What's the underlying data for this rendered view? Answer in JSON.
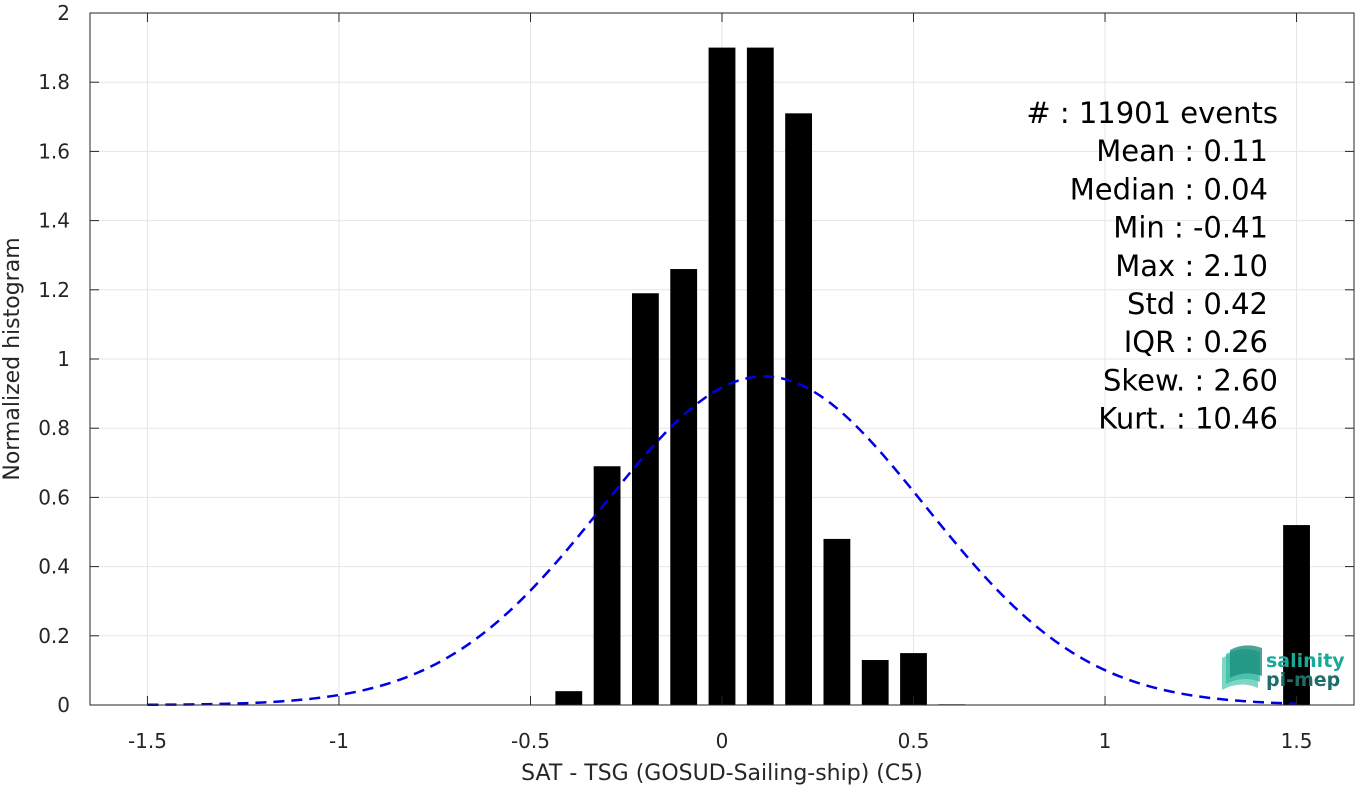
{
  "chart_data": {
    "type": "bar",
    "xlabel": "SAT - TSG (GOSUD-Sailing-ship) (C5)",
    "ylabel": "Normalized histogram",
    "xlim": [
      -1.65,
      1.65
    ],
    "ylim": [
      0,
      2
    ],
    "grid": true,
    "x_ticks": [
      -1.5,
      -1,
      -0.5,
      0,
      0.5,
      1,
      1.5
    ],
    "x_tick_labels": [
      "-1.5",
      "-1",
      "-0.5",
      "0",
      "0.5",
      "1",
      "1.5"
    ],
    "y_ticks": [
      0,
      0.2,
      0.4,
      0.6,
      0.8,
      1,
      1.2,
      1.4,
      1.6,
      1.8,
      2
    ],
    "y_tick_labels": [
      "0",
      "0.2",
      "0.4",
      "0.6",
      "0.8",
      "1",
      "1.2",
      "1.4",
      "1.6",
      "1.8",
      "2"
    ],
    "bar_color": "#000000",
    "bins": [
      {
        "x": -0.4,
        "y": 0.04
      },
      {
        "x": -0.3,
        "y": 0.69
      },
      {
        "x": -0.2,
        "y": 1.19
      },
      {
        "x": -0.1,
        "y": 1.26
      },
      {
        "x": 0.0,
        "y": 1.9
      },
      {
        "x": 0.1,
        "y": 1.9
      },
      {
        "x": 0.2,
        "y": 1.71
      },
      {
        "x": 0.3,
        "y": 0.48
      },
      {
        "x": 0.4,
        "y": 0.13
      },
      {
        "x": 0.5,
        "y": 0.15
      },
      {
        "x": 0.6,
        "y": 0.002
      },
      {
        "x": 1.5,
        "y": 0.52
      }
    ],
    "bin_width": 0.07,
    "fit_curve": {
      "kind": "normal",
      "mean": 0.11,
      "std": 0.42,
      "x_range": [
        -1.5,
        1.5
      ],
      "color": "#0000e6",
      "style": "dashed"
    },
    "stats": [
      "#  : 11901 events",
      "Mean : 0.11",
      "Median : 0.04",
      "Min : -0.41",
      "Max : 2.10",
      "Std : 0.42",
      "IQR : 0.26",
      "Skew. : 2.60",
      "Kurt. : 10.46"
    ]
  },
  "logo": {
    "line1": "salinity",
    "line2": "pi-mep",
    "color1": "#1aa898",
    "color2": "#1d6e68"
  }
}
